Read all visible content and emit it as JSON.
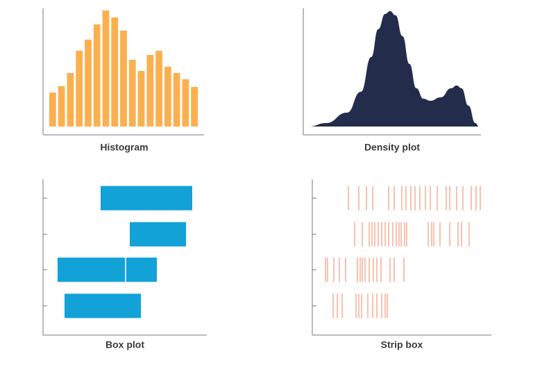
{
  "chart_data": [
    {
      "type": "bar",
      "title": "Histogram",
      "color": "#fbb04f",
      "ylim": [
        0,
        180
      ],
      "values": [
        49,
        58,
        77,
        109,
        125,
        147,
        167,
        157,
        138,
        96,
        80,
        103,
        109,
        86,
        77,
        68,
        57
      ]
    },
    {
      "type": "area",
      "title": "Density plot",
      "color": "#232d4b",
      "xlim": [
        0,
        255
      ],
      "ylim": [
        0,
        180
      ],
      "x": [
        5,
        30,
        60,
        80,
        95,
        105,
        115,
        122,
        130,
        140,
        150,
        160,
        170,
        180,
        195,
        210,
        218,
        225,
        235,
        245,
        250
      ],
      "values": [
        0,
        5,
        20,
        50,
        100,
        140,
        162,
        166,
        160,
        130,
        90,
        55,
        40,
        37,
        42,
        55,
        59,
        55,
        30,
        5,
        0
      ]
    },
    {
      "type": "box",
      "title": "Box plot",
      "color": "#12a2d8",
      "xlim": [
        0,
        236
      ],
      "boxes": [
        {
          "q1": 83,
          "q3": 215
        },
        {
          "q1": 125,
          "q3": 206
        },
        {
          "q1": 21,
          "median": 119,
          "q3": 164
        },
        {
          "q1": 31,
          "q3": 141
        }
      ]
    },
    {
      "type": "strip",
      "title": "Strip box",
      "color": "#f2997a",
      "xlim": [
        0,
        258
      ],
      "rows": [
        [
          52,
          67,
          78,
          87,
          110,
          118,
          129,
          135,
          142,
          148,
          155,
          163,
          170,
          180,
          193,
          198,
          208,
          217,
          229,
          236,
          242
        ],
        [
          61,
          72,
          82,
          86,
          90,
          95,
          100,
          105,
          110,
          116,
          121,
          125,
          128,
          133,
          136,
          167,
          172,
          175,
          184,
          198,
          210,
          215,
          226
        ],
        [
          19,
          22,
          31,
          39,
          48,
          65,
          69,
          72,
          76,
          82,
          88,
          93,
          99,
          112,
          118,
          132
        ],
        [
          30,
          36,
          43,
          63,
          67,
          71,
          80,
          87,
          93,
          100,
          105,
          108
        ]
      ]
    }
  ]
}
